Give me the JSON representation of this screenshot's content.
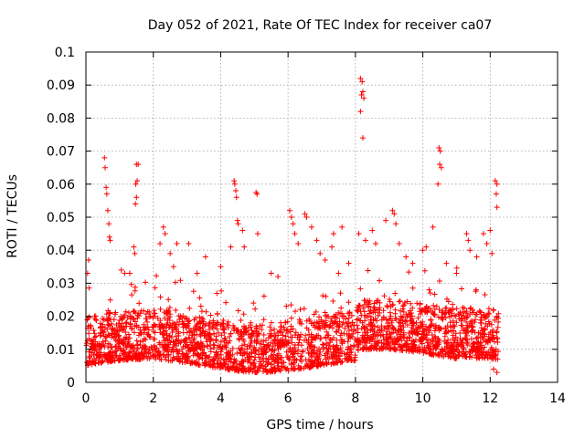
{
  "chart_data": {
    "type": "scatter",
    "title": "Day 052 of 2021, Rate Of TEC Index for receiver ca07",
    "xlabel": "GPS time / hours",
    "ylabel": "ROTI / TECUs",
    "xlim": [
      0,
      14
    ],
    "ylim": [
      0,
      0.1
    ],
    "x_ticks": [
      0,
      2,
      4,
      6,
      8,
      10,
      12,
      14
    ],
    "x_tick_labels": [
      "0",
      "2",
      "4",
      "6",
      "8",
      "10",
      "12",
      "14"
    ],
    "y_ticks": [
      0,
      0.01,
      0.02,
      0.03,
      0.04,
      0.05,
      0.06,
      0.07,
      0.08,
      0.09,
      0.1
    ],
    "y_tick_labels": [
      "0",
      "0.01",
      "0.02",
      "0.03",
      "0.04",
      "0.05",
      "0.06",
      "0.07",
      "0.08",
      "0.09",
      "0.1"
    ],
    "grid": true,
    "marker": "plus",
    "marker_color": "#ff0000",
    "series": [
      {
        "name": "ROTI",
        "x_range": [
          0,
          12.25
        ],
        "typical_range": [
          0.005,
          0.02
        ],
        "notable_points": [
          {
            "x": 0.05,
            "y": 0.033
          },
          {
            "x": 0.08,
            "y": 0.037
          },
          {
            "x": 0.55,
            "y": 0.068
          },
          {
            "x": 0.57,
            "y": 0.065
          },
          {
            "x": 0.6,
            "y": 0.059
          },
          {
            "x": 0.62,
            "y": 0.057
          },
          {
            "x": 0.65,
            "y": 0.052
          },
          {
            "x": 0.68,
            "y": 0.048
          },
          {
            "x": 0.7,
            "y": 0.044
          },
          {
            "x": 0.72,
            "y": 0.043
          },
          {
            "x": 1.05,
            "y": 0.034
          },
          {
            "x": 1.15,
            "y": 0.033
          },
          {
            "x": 1.3,
            "y": 0.033
          },
          {
            "x": 1.42,
            "y": 0.041
          },
          {
            "x": 1.45,
            "y": 0.039
          },
          {
            "x": 1.5,
            "y": 0.066
          },
          {
            "x": 1.55,
            "y": 0.066
          },
          {
            "x": 1.52,
            "y": 0.061
          },
          {
            "x": 1.48,
            "y": 0.06
          },
          {
            "x": 1.5,
            "y": 0.056
          },
          {
            "x": 1.47,
            "y": 0.054
          },
          {
            "x": 2.2,
            "y": 0.042
          },
          {
            "x": 2.3,
            "y": 0.047
          },
          {
            "x": 2.35,
            "y": 0.045
          },
          {
            "x": 2.5,
            "y": 0.039
          },
          {
            "x": 2.6,
            "y": 0.035
          },
          {
            "x": 2.7,
            "y": 0.042
          },
          {
            "x": 3.05,
            "y": 0.042
          },
          {
            "x": 3.3,
            "y": 0.033
          },
          {
            "x": 3.55,
            "y": 0.038
          },
          {
            "x": 4.0,
            "y": 0.035
          },
          {
            "x": 4.3,
            "y": 0.041
          },
          {
            "x": 4.4,
            "y": 0.061
          },
          {
            "x": 4.42,
            "y": 0.06
          },
          {
            "x": 4.45,
            "y": 0.058
          },
          {
            "x": 4.47,
            "y": 0.056
          },
          {
            "x": 4.5,
            "y": 0.049
          },
          {
            "x": 4.52,
            "y": 0.048
          },
          {
            "x": 4.65,
            "y": 0.046
          },
          {
            "x": 4.7,
            "y": 0.041
          },
          {
            "x": 5.05,
            "y": 0.0575
          },
          {
            "x": 5.08,
            "y": 0.057
          },
          {
            "x": 5.1,
            "y": 0.045
          },
          {
            "x": 5.5,
            "y": 0.033
          },
          {
            "x": 5.7,
            "y": 0.032
          },
          {
            "x": 6.05,
            "y": 0.052
          },
          {
            "x": 6.1,
            "y": 0.05
          },
          {
            "x": 6.15,
            "y": 0.048
          },
          {
            "x": 6.2,
            "y": 0.045
          },
          {
            "x": 6.3,
            "y": 0.042
          },
          {
            "x": 6.5,
            "y": 0.051
          },
          {
            "x": 6.55,
            "y": 0.05
          },
          {
            "x": 6.7,
            "y": 0.047
          },
          {
            "x": 6.85,
            "y": 0.043
          },
          {
            "x": 6.95,
            "y": 0.039
          },
          {
            "x": 7.1,
            "y": 0.037
          },
          {
            "x": 7.3,
            "y": 0.041
          },
          {
            "x": 7.35,
            "y": 0.045
          },
          {
            "x": 7.5,
            "y": 0.033
          },
          {
            "x": 7.6,
            "y": 0.047
          },
          {
            "x": 7.8,
            "y": 0.036
          },
          {
            "x": 8.15,
            "y": 0.092
          },
          {
            "x": 8.2,
            "y": 0.091
          },
          {
            "x": 8.22,
            "y": 0.088
          },
          {
            "x": 8.18,
            "y": 0.087
          },
          {
            "x": 8.25,
            "y": 0.086
          },
          {
            "x": 8.15,
            "y": 0.082
          },
          {
            "x": 8.22,
            "y": 0.074
          },
          {
            "x": 8.1,
            "y": 0.045
          },
          {
            "x": 8.3,
            "y": 0.043
          },
          {
            "x": 8.5,
            "y": 0.046
          },
          {
            "x": 8.6,
            "y": 0.042
          },
          {
            "x": 8.9,
            "y": 0.049
          },
          {
            "x": 9.1,
            "y": 0.052
          },
          {
            "x": 9.15,
            "y": 0.051
          },
          {
            "x": 9.2,
            "y": 0.048
          },
          {
            "x": 9.3,
            "y": 0.042
          },
          {
            "x": 9.5,
            "y": 0.038
          },
          {
            "x": 9.7,
            "y": 0.036
          },
          {
            "x": 10.0,
            "y": 0.04
          },
          {
            "x": 10.1,
            "y": 0.041
          },
          {
            "x": 10.3,
            "y": 0.047
          },
          {
            "x": 10.48,
            "y": 0.071
          },
          {
            "x": 10.52,
            "y": 0.07
          },
          {
            "x": 10.5,
            "y": 0.066
          },
          {
            "x": 10.45,
            "y": 0.06
          },
          {
            "x": 10.55,
            "y": 0.065
          },
          {
            "x": 10.7,
            "y": 0.036
          },
          {
            "x": 11.0,
            "y": 0.033
          },
          {
            "x": 11.3,
            "y": 0.045
          },
          {
            "x": 11.35,
            "y": 0.043
          },
          {
            "x": 11.4,
            "y": 0.04
          },
          {
            "x": 11.6,
            "y": 0.038
          },
          {
            "x": 11.8,
            "y": 0.045
          },
          {
            "x": 11.9,
            "y": 0.042
          },
          {
            "x": 12.0,
            "y": 0.046
          },
          {
            "x": 12.05,
            "y": 0.039
          },
          {
            "x": 12.15,
            "y": 0.061
          },
          {
            "x": 12.2,
            "y": 0.06
          },
          {
            "x": 12.18,
            "y": 0.057
          },
          {
            "x": 12.2,
            "y": 0.053
          },
          {
            "x": 12.2,
            "y": 0.003
          },
          {
            "x": 12.1,
            "y": 0.004
          }
        ]
      }
    ]
  }
}
